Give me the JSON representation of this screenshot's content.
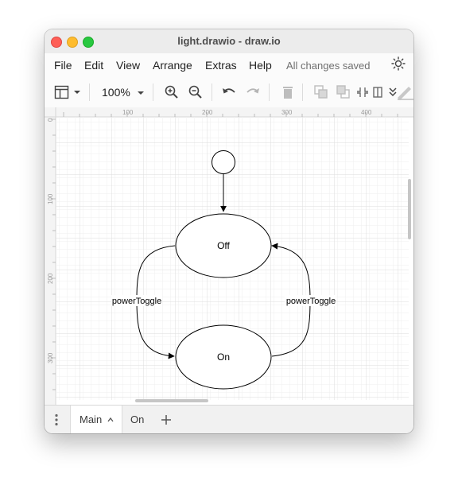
{
  "window": {
    "title": "light.drawio - draw.io"
  },
  "menubar": {
    "items": [
      "File",
      "Edit",
      "View",
      "Arrange",
      "Extras",
      "Help"
    ],
    "status": "All changes saved"
  },
  "toolbar": {
    "zoom": "100%"
  },
  "ruler": {
    "top_labels": [
      "100",
      "200",
      "300",
      "400"
    ],
    "left_labels": [
      "0",
      "100",
      "200",
      "300"
    ]
  },
  "diagram": {
    "states": [
      "Off",
      "On"
    ],
    "edges": [
      {
        "label": "powerToggle",
        "from": "Off",
        "to": "On"
      },
      {
        "label": "powerToggle",
        "from": "On",
        "to": "Off"
      }
    ]
  },
  "tabs": {
    "items": [
      "Main",
      "On"
    ],
    "active": "Main"
  },
  "colors": {
    "close": "#fe5f57",
    "minimize": "#febc2e",
    "zoom": "#28c840"
  }
}
